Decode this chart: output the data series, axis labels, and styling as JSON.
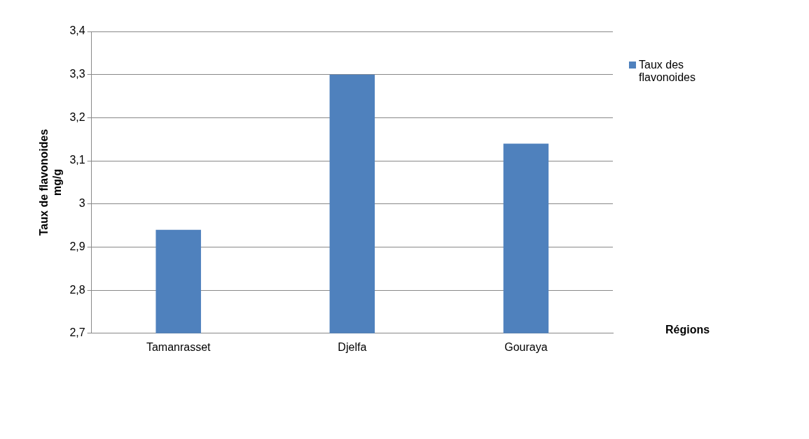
{
  "chart_data": {
    "type": "bar",
    "xlabel": "Régions",
    "ylabel": "Taux de flavonoides\nmg/g",
    "categories": [
      "Tamanrasset",
      "Djelfa",
      "Gouraya"
    ],
    "series": [
      {
        "name": "Taux des flavonoides",
        "color": "#4f81bd",
        "values": [
          2.94,
          3.3,
          3.14
        ]
      }
    ],
    "ylim": [
      2.7,
      3.4
    ],
    "yticks": [
      {
        "value": 2.7,
        "label": "2,7"
      },
      {
        "value": 2.8,
        "label": "2,8"
      },
      {
        "value": 2.9,
        "label": "2,9"
      },
      {
        "value": 3,
        "label": "3"
      },
      {
        "value": 3.1,
        "label": "3,1"
      },
      {
        "value": 3.2,
        "label": "3,2"
      },
      {
        "value": 3.3,
        "label": "3,3"
      },
      {
        "value": 3.4,
        "label": "3,4"
      }
    ],
    "grid": "y",
    "legend": "top right"
  }
}
